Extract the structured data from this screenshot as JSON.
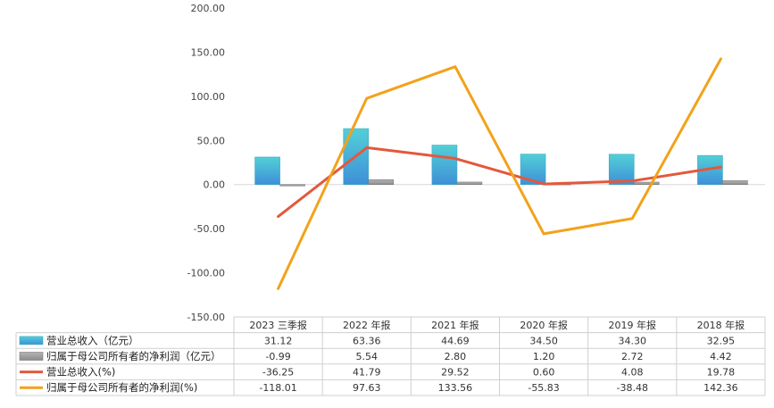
{
  "chart_data": {
    "type": "bar",
    "categories": [
      "2023 三季报",
      "2022 年报",
      "2021 年报",
      "2020 年报",
      "2019 年报",
      "2018 年报"
    ],
    "ylim": [
      -150,
      200
    ],
    "y_ticks": [
      "200.00",
      "150.00",
      "100.00",
      "50.00",
      "0.00",
      "-50.00",
      "-100.00",
      "-150.00"
    ],
    "grid": false,
    "legend_placement": "table-left",
    "series": [
      {
        "name": "营业总收入（亿元）",
        "kind": "bar",
        "color": "#4dc3d6",
        "values": [
          31.12,
          63.36,
          44.69,
          34.5,
          34.3,
          32.95
        ],
        "labels": [
          "31.12",
          "63.36",
          "44.69",
          "34.50",
          "34.30",
          "32.95"
        ]
      },
      {
        "name": "归属于母公司所有者的净利润（亿元）",
        "kind": "bar",
        "color": "#9a9a9a",
        "values": [
          -0.99,
          5.54,
          2.8,
          1.2,
          2.72,
          4.42
        ],
        "labels": [
          "-0.99",
          "5.54",
          "2.80",
          "1.20",
          "2.72",
          "4.42"
        ]
      },
      {
        "name": "营业总收入(%)",
        "kind": "line",
        "color": "#e2593b",
        "values": [
          -36.25,
          41.79,
          29.52,
          0.6,
          4.08,
          19.78
        ],
        "labels": [
          "-36.25",
          "41.79",
          "29.52",
          "0.60",
          "4.08",
          "19.78"
        ]
      },
      {
        "name": "归属于母公司所有者的净利润(%)",
        "kind": "line",
        "color": "#f2a21b",
        "values": [
          -118.01,
          97.63,
          133.56,
          -55.83,
          -38.48,
          142.36
        ],
        "labels": [
          "-118.01",
          "97.63",
          "133.56",
          "-55.83",
          "-38.48",
          "142.36"
        ]
      }
    ]
  }
}
